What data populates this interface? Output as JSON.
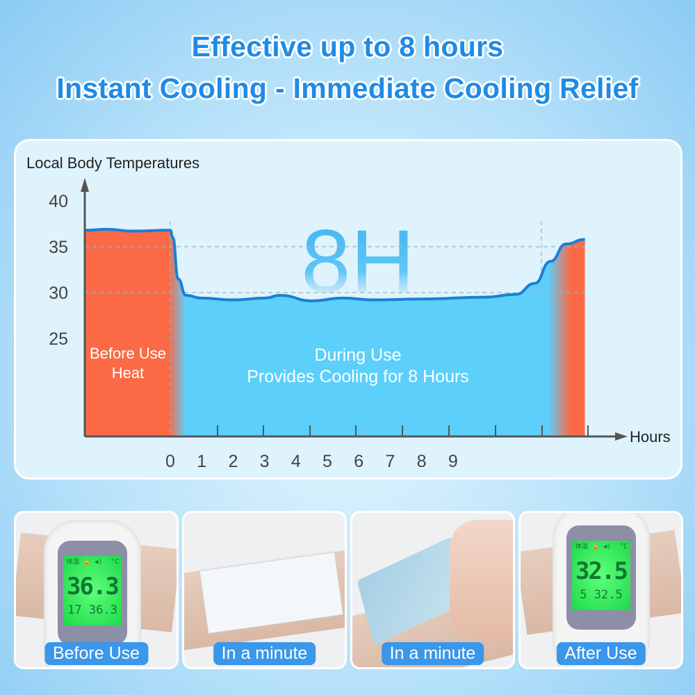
{
  "headline": {
    "line1": "Effective up to 8 hours",
    "line2": "Instant Cooling - Immediate Cooling Relief"
  },
  "chart_data": {
    "type": "area",
    "ylabel": "Local Body Temperatures",
    "xlabel": "Hours",
    "y_ticks": [
      "40",
      "35",
      "30",
      "25"
    ],
    "x_ticks": [
      "0",
      "1",
      "2",
      "3",
      "4",
      "5",
      "6",
      "7",
      "8",
      "9"
    ],
    "ylim": [
      14,
      42
    ],
    "grid": "dashed lines at 30 and 35",
    "watermark": "8H",
    "series": [
      {
        "points": [
          [
            -2.7,
            36.8
          ],
          [
            -2,
            36.9
          ],
          [
            -1.2,
            36.7
          ],
          [
            0,
            36.8
          ],
          [
            0.08,
            36.0
          ],
          [
            0.25,
            31.5
          ],
          [
            0.5,
            29.7
          ],
          [
            1,
            29.4
          ],
          [
            2,
            29.2
          ],
          [
            3,
            29.4
          ],
          [
            3.5,
            29.7
          ],
          [
            4.5,
            29.1
          ],
          [
            5.5,
            29.4
          ],
          [
            6.5,
            29.2
          ],
          [
            8,
            29.3
          ],
          [
            10,
            29.5
          ],
          [
            11,
            29.8
          ],
          [
            11.6,
            31
          ],
          [
            12.1,
            33.4
          ],
          [
            12.6,
            35.3
          ],
          [
            13.2,
            35.8
          ]
        ]
      }
    ],
    "regions": [
      {
        "label_lines": [
          "Before Use",
          "Heat"
        ],
        "from": -2.7,
        "to": 0,
        "color": "#fb6a45"
      },
      {
        "label_lines": [
          "During Use",
          "Provides Cooling for 8 Hours"
        ],
        "from": 0,
        "to": 12.7,
        "color": "#5ccffb"
      },
      {
        "from": 12.7,
        "to": 13.2,
        "color": "#fb6a45"
      }
    ],
    "line_color": "#1a7fd6"
  },
  "photos": [
    {
      "label": "Before Use",
      "lcd_main": "36.3",
      "lcd_sub": "17 36.3",
      "lcd_unit": "°C",
      "lcd_icons": "体温 🔒 ◀)"
    },
    {
      "label": "In a minute"
    },
    {
      "label": "In a minute"
    },
    {
      "label": "After Use",
      "lcd_main": "32.5",
      "lcd_sub": "5 32.5",
      "lcd_unit": "°C",
      "lcd_icons": "体温 🔒 ◀)"
    }
  ]
}
